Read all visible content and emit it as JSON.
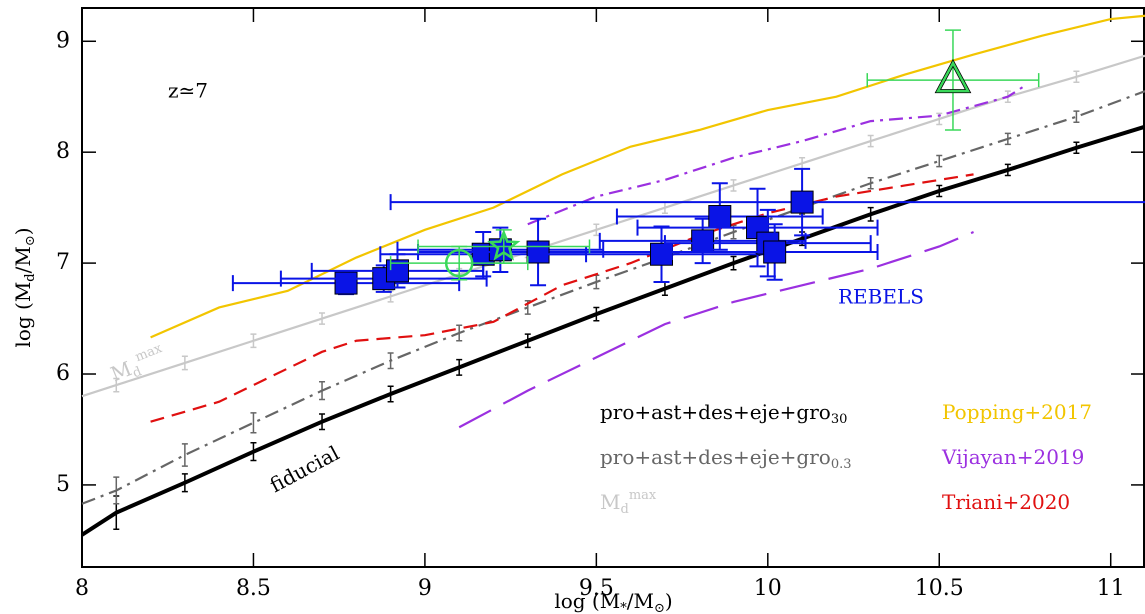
{
  "chart_data": {
    "type": "line",
    "xlim": [
      8,
      11.1
    ],
    "ylim": [
      4.26,
      9.3
    ],
    "xticks": [
      8,
      8.5,
      9,
      9.5,
      10,
      10.5,
      11
    ],
    "yticks": [
      5,
      6,
      7,
      8,
      9
    ],
    "x_label": [
      {
        "t": "log (M"
      },
      {
        "t": "*",
        "s": "sub"
      },
      {
        "t": "/M"
      },
      {
        "t": "⊙",
        "s": "sub"
      },
      {
        "t": ")"
      }
    ],
    "y_label": [
      {
        "t": "log (M"
      },
      {
        "t": "d",
        "s": "sub"
      },
      {
        "t": "/M"
      },
      {
        "t": "⊙",
        "s": "sub"
      },
      {
        "t": ")"
      }
    ],
    "annotations": {
      "redshift": "z≃7",
      "rebels": "REBELS",
      "fiducial": "fiducial",
      "mdmax": [
        {
          "t": "M"
        },
        {
          "t": "d",
          "s": "sub"
        },
        {
          "t": "max",
          "s": "sup"
        }
      ]
    },
    "series": [
      {
        "name": [
          {
            "t": "pro+ast+des+eje+gro"
          },
          {
            "t": "30",
            "s": "sub"
          }
        ],
        "color": "#000000",
        "style": "thick",
        "x": [
          8,
          8.1,
          8.3,
          8.5,
          8.7,
          8.9,
          9.1,
          9.3,
          9.5,
          9.7,
          9.9,
          10.1,
          10.3,
          10.5,
          10.7,
          10.9,
          11.1
        ],
        "values": [
          4.55,
          4.75,
          5.02,
          5.3,
          5.57,
          5.82,
          6.06,
          6.3,
          6.54,
          6.77,
          7.0,
          7.22,
          7.44,
          7.65,
          7.84,
          8.04,
          8.23
        ],
        "errors": [
          null,
          0.15,
          0.08,
          0.08,
          0.07,
          0.07,
          0.07,
          0.06,
          0.06,
          0.06,
          0.06,
          0.06,
          0.06,
          0.05,
          0.05,
          0.05,
          null
        ]
      },
      {
        "name": [
          {
            "t": "pro+ast+des+eje+gro"
          },
          {
            "t": "0.3",
            "s": "sub"
          }
        ],
        "color": "#666666",
        "style": "dashdot",
        "x": [
          8,
          8.1,
          8.3,
          8.5,
          8.7,
          8.9,
          9.1,
          9.3,
          9.5,
          9.7,
          9.9,
          10.1,
          10.3,
          10.5,
          10.7,
          10.9,
          11.1
        ],
        "values": [
          4.83,
          4.95,
          5.27,
          5.56,
          5.85,
          6.12,
          6.37,
          6.6,
          6.83,
          7.05,
          7.28,
          7.5,
          7.72,
          7.92,
          8.12,
          8.32,
          8.55
        ],
        "errors": [
          null,
          0.12,
          0.1,
          0.09,
          0.08,
          0.07,
          0.07,
          0.06,
          0.06,
          0.06,
          0.06,
          0.06,
          0.05,
          0.05,
          0.05,
          0.05,
          null
        ]
      },
      {
        "name": [
          {
            "t": "M"
          },
          {
            "t": "d",
            "s": "sub"
          },
          {
            "t": "max",
            "s": "sup"
          }
        ],
        "color": "#c8c8c8",
        "style": "solid",
        "x": [
          8,
          8.1,
          8.3,
          8.5,
          8.7,
          8.9,
          9.1,
          9.3,
          9.5,
          9.7,
          9.9,
          10.1,
          10.3,
          10.5,
          10.7,
          10.9,
          11.1
        ],
        "values": [
          5.8,
          5.9,
          6.1,
          6.3,
          6.5,
          6.7,
          6.9,
          7.1,
          7.3,
          7.5,
          7.7,
          7.9,
          8.1,
          8.3,
          8.5,
          8.68,
          8.87
        ],
        "errors": [
          null,
          0.06,
          0.06,
          0.06,
          0.05,
          0.05,
          0.05,
          0.05,
          0.05,
          0.05,
          0.05,
          0.05,
          0.05,
          0.05,
          0.05,
          0.05,
          null
        ]
      },
      {
        "name": [
          {
            "t": "Popping+2017"
          }
        ],
        "color": "#f2c500",
        "style": "solid",
        "x": [
          8.2,
          8.4,
          8.6,
          8.8,
          9.0,
          9.2,
          9.4,
          9.6,
          9.8,
          10.0,
          10.2,
          10.4,
          10.6,
          10.8,
          11.0,
          11.1
        ],
        "values": [
          6.33,
          6.6,
          6.75,
          7.05,
          7.3,
          7.5,
          7.8,
          8.05,
          8.2,
          8.38,
          8.5,
          8.7,
          8.88,
          9.05,
          9.2,
          9.23
        ]
      },
      {
        "name": [
          {
            "t": "Vijayan+2019"
          }
        ],
        "color": "#9b30e0",
        "style": "dashdot",
        "x": [
          9.3,
          9.5,
          9.7,
          9.9,
          10.1,
          10.3,
          10.5,
          10.7,
          10.75
        ],
        "values": [
          7.35,
          7.6,
          7.75,
          7.95,
          8.1,
          8.28,
          8.33,
          8.5,
          8.6
        ]
      },
      {
        "color": "#9b30e0",
        "style": "longdash",
        "x": [
          9.1,
          9.3,
          9.5,
          9.7,
          9.9,
          10.1,
          10.3,
          10.5,
          10.6
        ],
        "values": [
          5.52,
          5.85,
          6.15,
          6.45,
          6.65,
          6.8,
          6.95,
          7.15,
          7.28
        ]
      },
      {
        "name": [
          {
            "t": "Triani+2020"
          }
        ],
        "color": "#e01010",
        "style": "dashed",
        "x": [
          8.2,
          8.4,
          8.6,
          8.7,
          8.8,
          9.0,
          9.2,
          9.4,
          9.6,
          9.8,
          10.0,
          10.2,
          10.4,
          10.6
        ],
        "values": [
          5.57,
          5.75,
          6.05,
          6.2,
          6.3,
          6.35,
          6.47,
          6.8,
          7.0,
          7.25,
          7.45,
          7.6,
          7.7,
          7.8
        ]
      }
    ],
    "rebels": {
      "color": "#0a14e6",
      "x": [
        8.77,
        8.88,
        8.92,
        9.17,
        9.22,
        9.33,
        9.69,
        9.81,
        9.86,
        9.97,
        10.0,
        10.02,
        10.1
      ],
      "values": [
        6.82,
        6.86,
        6.93,
        7.08,
        7.12,
        7.1,
        7.08,
        7.2,
        7.42,
        7.32,
        7.18,
        7.1,
        7.55
      ],
      "xerr": [
        0.33,
        0.3,
        0.25,
        0.3,
        0.3,
        0.35,
        0.35,
        0.3,
        0.3,
        0.35,
        0.3,
        0.3,
        1.2
      ],
      "yerr": [
        0.1,
        0.12,
        0.15,
        0.2,
        0.2,
        0.3,
        0.25,
        0.2,
        0.3,
        0.35,
        0.3,
        0.25,
        0.3
      ]
    },
    "green": {
      "color": "#3ad85a",
      "markers": [
        "circle",
        "star",
        "triangle"
      ],
      "x": [
        9.1,
        9.23,
        10.54
      ],
      "values": [
        7.0,
        7.15,
        8.65
      ],
      "xerr": [
        0.2,
        0.25,
        0.25
      ],
      "yerr": [
        0.15,
        0.15,
        0.45
      ]
    }
  }
}
